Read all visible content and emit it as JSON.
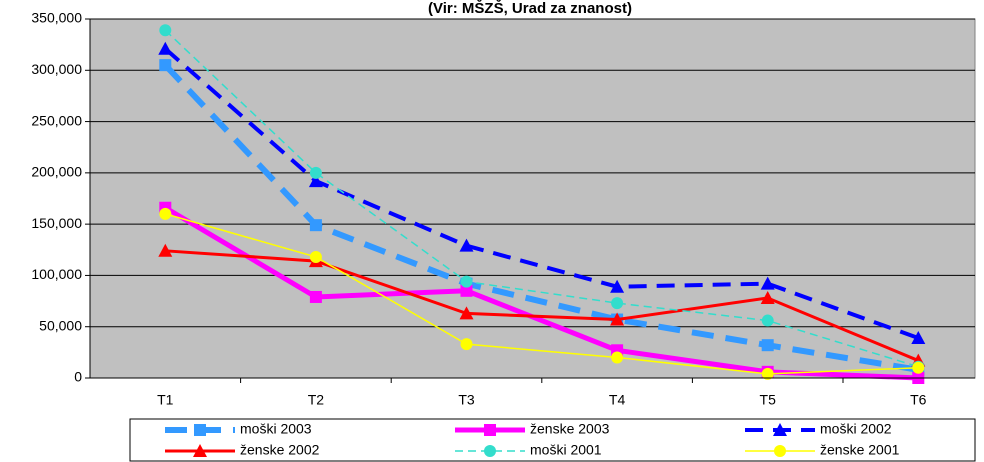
{
  "chart_data": {
    "type": "line",
    "title": "(Vir: MŠZŠ, Urad za znanost)",
    "categories": [
      "T1",
      "T2",
      "T3",
      "T4",
      "T5",
      "T6"
    ],
    "ylim": [
      0,
      350000
    ],
    "yticks": [
      0,
      {
        "value": 50000,
        "label": "50,000"
      },
      {
        "value": 100000,
        "label": "100,000"
      },
      {
        "value": 150000,
        "label": "150,000"
      },
      {
        "value": 200000,
        "label": "200,000"
      },
      {
        "value": 250000,
        "label": "250,000"
      },
      {
        "value": 300000,
        "label": "300,000"
      },
      {
        "value": 350000,
        "label": "350,000"
      }
    ],
    "grid": true,
    "series": [
      {
        "name": "moški 2003",
        "color": "#3399ff",
        "width": 6,
        "dash": "22 12",
        "marker": "square",
        "values": [
          305000,
          149000,
          92000,
          57000,
          32000,
          8000
        ]
      },
      {
        "name": "ženske 2003",
        "color": "#ff00ff",
        "width": 5,
        "dash": "",
        "marker": "square",
        "values": [
          166000,
          79000,
          85000,
          27000,
          6000,
          0
        ]
      },
      {
        "name": "moški 2002",
        "color": "#0000ff",
        "width": 4,
        "dash": "18 10",
        "marker": "triangle",
        "values": [
          321000,
          192000,
          129000,
          89000,
          92000,
          39000
        ]
      },
      {
        "name": "ženske 2002",
        "color": "#ff0000",
        "width": 3,
        "dash": "",
        "marker": "triangle",
        "values": [
          124000,
          114000,
          63000,
          57000,
          78000,
          17000
        ]
      },
      {
        "name": "moški 2001",
        "color": "#33ddcc",
        "width": 1.5,
        "dash": "8 5",
        "marker": "circle",
        "values": [
          339000,
          200000,
          94000,
          73000,
          56000,
          11000
        ]
      },
      {
        "name": "ženske 2001",
        "color": "#ffff00",
        "width": 1.5,
        "dash": "",
        "marker": "circle",
        "values": [
          160000,
          118000,
          33000,
          20000,
          4000,
          10000
        ]
      }
    ]
  }
}
